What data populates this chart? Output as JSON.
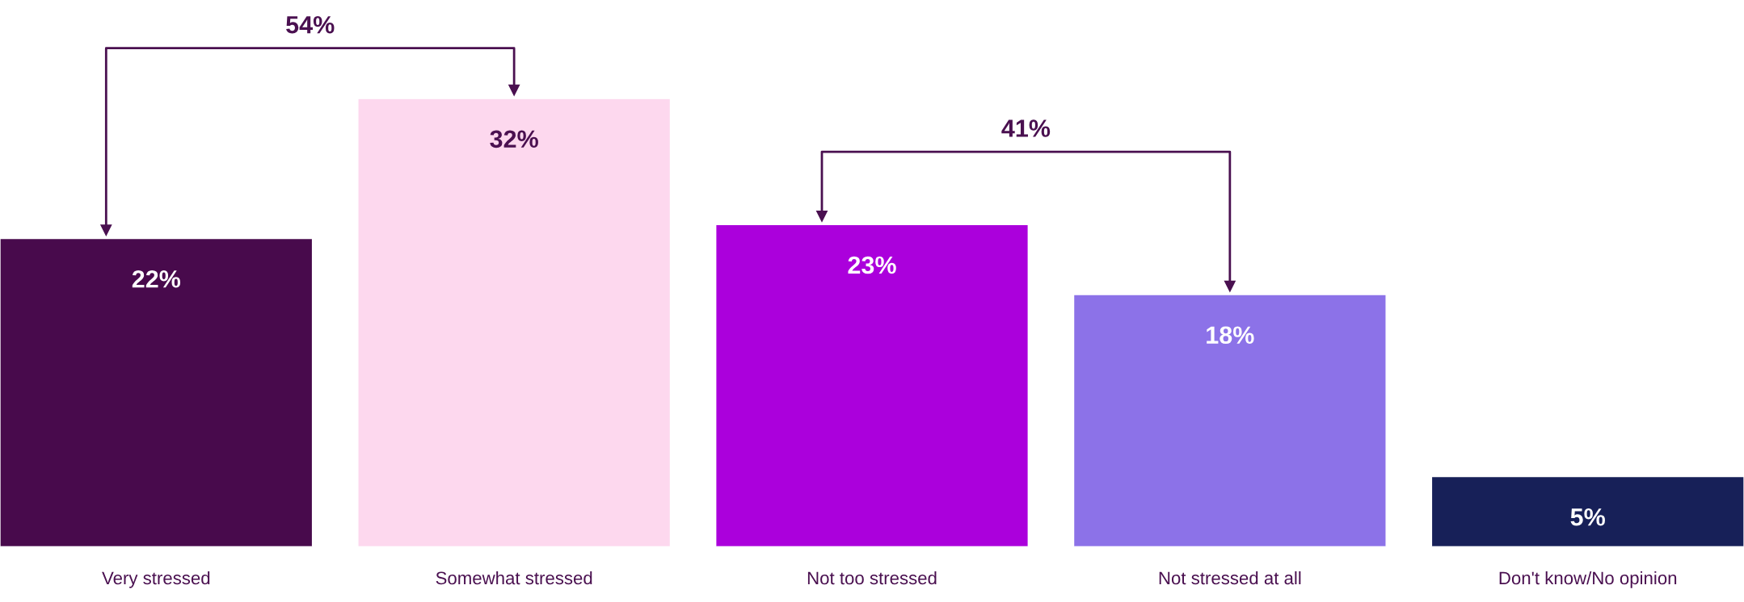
{
  "chart_data": {
    "type": "bar",
    "categories": [
      "Very stressed",
      "Somewhat stressed",
      "Not too stressed",
      "Not stressed at all",
      "Don't know/No opinion"
    ],
    "values": [
      22,
      32,
      23,
      18,
      5
    ],
    "colors": [
      "#480a4c",
      "#fdd8ee",
      "#ab00dc",
      "#8c72e8",
      "#172058"
    ],
    "value_labels": [
      "22%",
      "32%",
      "23%",
      "18%",
      "5%"
    ],
    "tick_labels": "x",
    "grid": false,
    "legend": false,
    "annotations": [
      "54%",
      "41%"
    ]
  }
}
